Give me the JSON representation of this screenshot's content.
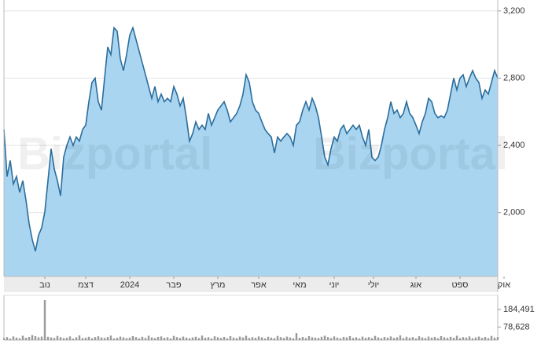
{
  "chart_data": {
    "type": "area",
    "watermark": "Bizportal",
    "color": "#2c6d9c",
    "fill": "#a9d5f1",
    "grid": true,
    "values": [
      2495,
      2215,
      2310,
      2170,
      2215,
      2120,
      2190,
      2075,
      1935,
      1840,
      1770,
      1865,
      1910,
      2005,
      2190,
      2380,
      2260,
      2190,
      2100,
      2330,
      2400,
      2450,
      2400,
      2450,
      2425,
      2495,
      2520,
      2660,
      2775,
      2800,
      2660,
      2610,
      2800,
      2985,
      2940,
      3100,
      3080,
      2915,
      2845,
      2940,
      3055,
      3100,
      3030,
      2960,
      2890,
      2820,
      2750,
      2680,
      2750,
      2660,
      2705,
      2660,
      2680,
      2660,
      2750,
      2705,
      2635,
      2680,
      2565,
      2425,
      2470,
      2540,
      2495,
      2520,
      2495,
      2590,
      2520,
      2565,
      2610,
      2635,
      2660,
      2610,
      2540,
      2565,
      2590,
      2635,
      2705,
      2820,
      2775,
      2660,
      2610,
      2590,
      2540,
      2495,
      2470,
      2450,
      2355,
      2450,
      2425,
      2450,
      2470,
      2450,
      2400,
      2520,
      2540,
      2610,
      2660,
      2610,
      2680,
      2635,
      2565,
      2450,
      2330,
      2285,
      2380,
      2450,
      2425,
      2495,
      2520,
      2470,
      2495,
      2520,
      2495,
      2520,
      2450,
      2400,
      2495,
      2330,
      2310,
      2330,
      2400,
      2495,
      2565,
      2660,
      2590,
      2610,
      2565,
      2590,
      2660,
      2590,
      2565,
      2520,
      2470,
      2540,
      2590,
      2680,
      2660,
      2590,
      2565,
      2575,
      2565,
      2610,
      2705,
      2800,
      2730,
      2800,
      2820,
      2750,
      2800,
      2845,
      2800,
      2775,
      2680,
      2730,
      2705,
      2775,
      2845,
      2800
    ],
    "xlim": [
      0,
      157
    ],
    "xticks": [
      {
        "value": 13,
        "label": "נוב"
      },
      {
        "value": 26,
        "label": "דצמ"
      },
      {
        "value": 40,
        "label": "2024"
      },
      {
        "value": 54,
        "label": "פבר"
      },
      {
        "value": 68,
        "label": "מרץ"
      },
      {
        "value": 81,
        "label": "אפר"
      },
      {
        "value": 94,
        "label": "מאי"
      },
      {
        "value": 105,
        "label": "יוני"
      },
      {
        "value": 117.5,
        "label": "יולי"
      },
      {
        "value": 131,
        "label": "אוג"
      },
      {
        "value": 145,
        "label": "ספט"
      },
      {
        "value": 159,
        "label": "אוק"
      }
    ],
    "ylim": [
      1620,
      3265
    ],
    "yticks": [
      {
        "value": 2000,
        "label": "2,000"
      },
      {
        "value": 2400,
        "label": "2,400"
      },
      {
        "value": 2800,
        "label": "2,800"
      },
      {
        "value": 3200,
        "label": "3,200"
      }
    ],
    "volume": {
      "type": "bar",
      "color": "#9a9a9a",
      "ylim": [
        0,
        260000
      ],
      "yticks": [
        {
          "value": 78628,
          "label": "78,628"
        },
        {
          "value": 184491,
          "label": "184,491"
        }
      ],
      "values": [
        12000,
        18000,
        9000,
        22000,
        15000,
        11000,
        26000,
        14000,
        19000,
        30000,
        24000,
        17000,
        21000,
        241000,
        20000,
        16000,
        13000,
        25000,
        18000,
        12000,
        14000,
        22000,
        9000,
        17000,
        28000,
        12000,
        15000,
        20000,
        11000,
        18000,
        23000,
        16000,
        13000,
        19000,
        27000,
        10000,
        14000,
        21000,
        17000,
        12000,
        15000,
        24000,
        18000,
        11000,
        20000,
        13000,
        26000,
        16000,
        12000,
        19000,
        22000,
        14000,
        17000,
        10000,
        25000,
        18000,
        13000,
        21000,
        15000,
        11000,
        16000,
        20000,
        12000,
        27000,
        14000,
        18000,
        10000,
        23000,
        17000,
        13000,
        19000,
        11000,
        24000,
        15000,
        12000,
        21000,
        16000,
        26000,
        13000,
        18000,
        14000,
        22000,
        17000,
        10000,
        20000,
        15000,
        12000,
        25000,
        18000,
        13000,
        21000,
        16000,
        11000,
        42000,
        14000,
        19000,
        12000,
        24000,
        17000,
        15000,
        13000,
        20000,
        26000,
        18000,
        12000,
        22000,
        15000,
        11000,
        19000,
        16000,
        24000,
        13000,
        17000,
        10000,
        21000,
        14000,
        18000,
        12000,
        25000,
        16000,
        11000,
        19000,
        15000,
        22000,
        13000,
        17000,
        28000,
        12000,
        20000,
        14000,
        18000,
        10000,
        23000,
        16000,
        12000,
        21000,
        15000,
        19000,
        11000,
        24000,
        17000,
        13000,
        20000,
        14000,
        26000,
        12000,
        18000,
        15000,
        22000,
        11000,
        16000,
        21000,
        13000,
        19000,
        12000,
        25000,
        15000,
        18000
      ]
    }
  }
}
